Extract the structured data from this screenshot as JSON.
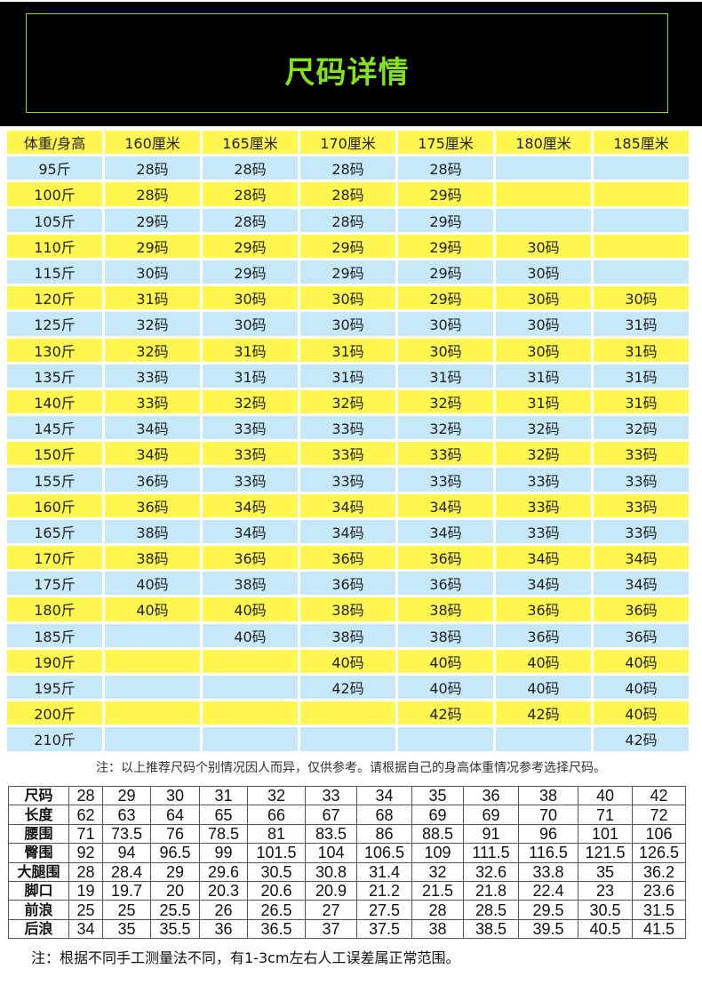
{
  "title": "尺码详情",
  "colors": {
    "banner_bg": "#000000",
    "title_green": "#84e21b",
    "yellow_row": "#fff650",
    "blue_row": "#c7e8f8"
  },
  "recommend_table": {
    "headers": [
      "体重/身高",
      "160厘米",
      "165厘米",
      "170厘米",
      "175厘米",
      "180厘米",
      "185厘米"
    ],
    "rows": [
      [
        "95斤",
        "28码",
        "28码",
        "28码",
        "28码",
        "",
        ""
      ],
      [
        "100斤",
        "28码",
        "28码",
        "28码",
        "29码",
        "",
        ""
      ],
      [
        "105斤",
        "29码",
        "28码",
        "28码",
        "29码",
        "",
        ""
      ],
      [
        "110斤",
        "29码",
        "29码",
        "29码",
        "29码",
        "30码",
        ""
      ],
      [
        "115斤",
        "30码",
        "29码",
        "29码",
        "29码",
        "30码",
        ""
      ],
      [
        "120斤",
        "31码",
        "30码",
        "30码",
        "29码",
        "30码",
        "30码"
      ],
      [
        "125斤",
        "32码",
        "30码",
        "30码",
        "30码",
        "30码",
        "31码"
      ],
      [
        "130斤",
        "32码",
        "31码",
        "31码",
        "30码",
        "30码",
        "31码"
      ],
      [
        "135斤",
        "33码",
        "31码",
        "31码",
        "31码",
        "31码",
        "31码"
      ],
      [
        "140斤",
        "33码",
        "32码",
        "32码",
        "32码",
        "31码",
        "31码"
      ],
      [
        "145斤",
        "34码",
        "33码",
        "33码",
        "32码",
        "32码",
        "32码"
      ],
      [
        "150斤",
        "34码",
        "33码",
        "33码",
        "33码",
        "32码",
        "33码"
      ],
      [
        "155斤",
        "36码",
        "33码",
        "33码",
        "33码",
        "33码",
        "33码"
      ],
      [
        "160斤",
        "36码",
        "34码",
        "34码",
        "34码",
        "33码",
        "33码"
      ],
      [
        "165斤",
        "38码",
        "34码",
        "34码",
        "34码",
        "33码",
        "33码"
      ],
      [
        "170斤",
        "38码",
        "36码",
        "36码",
        "36码",
        "34码",
        "34码"
      ],
      [
        "175斤",
        "40码",
        "38码",
        "36码",
        "36码",
        "34码",
        "34码"
      ],
      [
        "180斤",
        "40码",
        "40码",
        "38码",
        "38码",
        "36码",
        "36码"
      ],
      [
        "185斤",
        "",
        "40码",
        "38码",
        "38码",
        "36码",
        "36码"
      ],
      [
        "190斤",
        "",
        "",
        "40码",
        "40码",
        "40码",
        "40码"
      ],
      [
        "195斤",
        "",
        "",
        "42码",
        "40码",
        "40码",
        "40码"
      ],
      [
        "200斤",
        "",
        "",
        "",
        "42码",
        "42码",
        "40码"
      ],
      [
        "210斤",
        "",
        "",
        "",
        "",
        "",
        "42码"
      ]
    ]
  },
  "recommend_note": "注：以上推荐尺码个别情况因人而异，仅供参考。请根据自己的身高体重情况参考选择尺码。",
  "measure_table": {
    "rows": [
      [
        "尺码",
        "28",
        "29",
        "30",
        "31",
        "32",
        "33",
        "34",
        "35",
        "36",
        "38",
        "40",
        "42"
      ],
      [
        "长度",
        "62",
        "63",
        "64",
        "65",
        "66",
        "67",
        "68",
        "69",
        "69",
        "70",
        "71",
        "72"
      ],
      [
        "腰围",
        "71",
        "73.5",
        "76",
        "78.5",
        "81",
        "83.5",
        "86",
        "88.5",
        "91",
        "96",
        "101",
        "106"
      ],
      [
        "臀围",
        "92",
        "94",
        "96.5",
        "99",
        "101.5",
        "104",
        "106.5",
        "109",
        "111.5",
        "116.5",
        "121.5",
        "126.5"
      ],
      [
        "大腿围",
        "28",
        "28.4",
        "29",
        "29.6",
        "30.5",
        "30.8",
        "31.4",
        "32",
        "32.6",
        "33.8",
        "35",
        "36.2"
      ],
      [
        "脚口",
        "19",
        "19.7",
        "20",
        "20.3",
        "20.6",
        "20.9",
        "21.2",
        "21.5",
        "21.8",
        "22.4",
        "23",
        "23.6"
      ],
      [
        "前浪",
        "25",
        "25",
        "25.5",
        "26",
        "26.5",
        "27",
        "27.5",
        "28",
        "28.5",
        "29.5",
        "30.5",
        "31.5"
      ],
      [
        "后浪",
        "34",
        "35",
        "35.5",
        "36",
        "36.5",
        "37",
        "37.5",
        "38",
        "38.5",
        "39.5",
        "40.5",
        "41.5"
      ]
    ]
  },
  "measure_note": "注：根据不同手工测量法不同，有1-3cm左右人工误差属正常范围。"
}
